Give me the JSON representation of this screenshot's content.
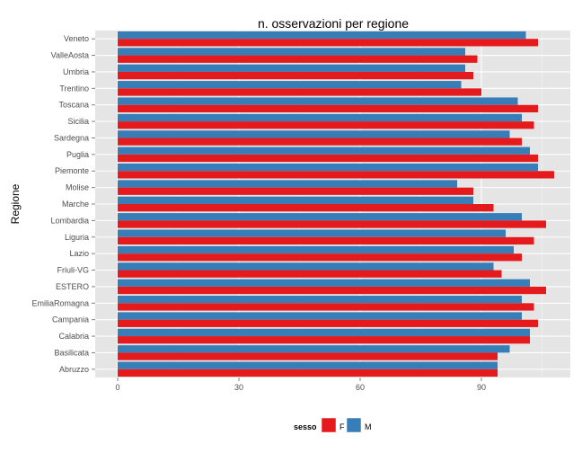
{
  "chart_data": {
    "type": "bar",
    "orientation": "horizontal",
    "title": "n. osservazioni per regione",
    "xlabel": "",
    "ylabel": "Regione",
    "xlim": [
      0,
      111
    ],
    "xticks": [
      0,
      30,
      60,
      90
    ],
    "categories": [
      "Abruzzo",
      "Basilicata",
      "Calabria",
      "Campania",
      "EmiliaRomagna",
      "ESTERO",
      "Friuli-VG",
      "Lazio",
      "Liguria",
      "Lombardia",
      "Marche",
      "Molise",
      "Piemonte",
      "Puglia",
      "Sardegna",
      "Sicilia",
      "Toscana",
      "Trentino",
      "Umbria",
      "ValleAosta",
      "Veneto"
    ],
    "series": [
      {
        "name": "F",
        "color": "#E41A1C",
        "values": [
          94,
          94,
          102,
          104,
          103,
          106,
          95,
          100,
          103,
          106,
          93,
          88,
          108,
          104,
          100,
          103,
          104,
          90,
          88,
          89,
          104
        ]
      },
      {
        "name": "M",
        "color": "#377EB8",
        "values": [
          94,
          97,
          102,
          100,
          100,
          102,
          93,
          98,
          96,
          100,
          88,
          84,
          104,
          102,
          97,
          100,
          99,
          85,
          86,
          86,
          101
        ]
      }
    ],
    "grid": true,
    "legend": {
      "title": "sesso",
      "position": "bottom"
    }
  }
}
